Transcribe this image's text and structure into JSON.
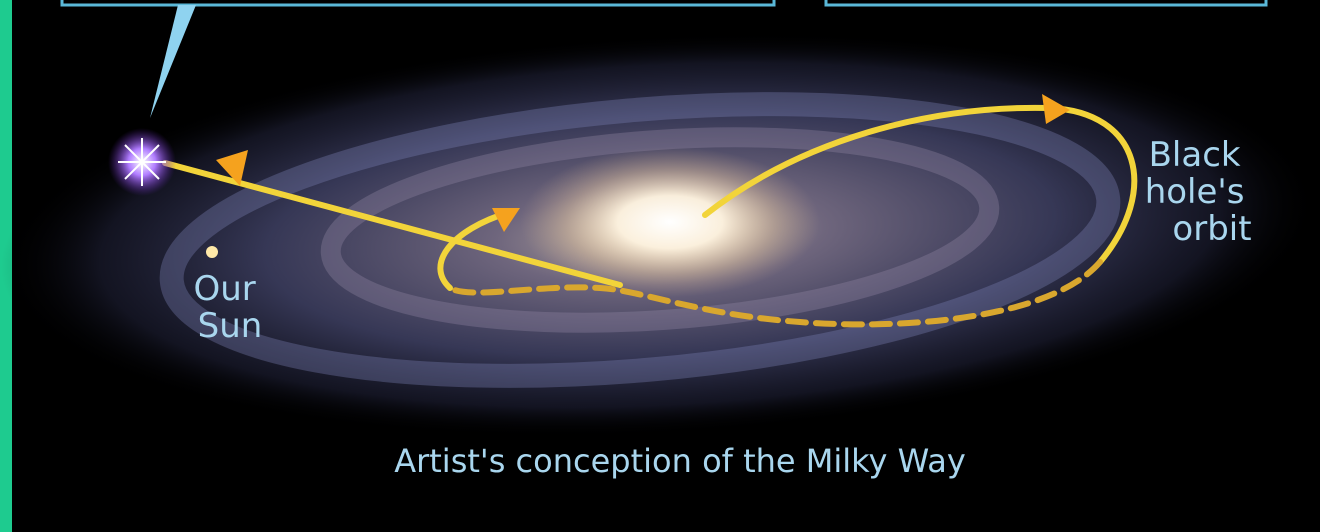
{
  "labels": {
    "black_hole_orbit": [
      "Black",
      "hole's",
      "orbit"
    ],
    "our_sun": [
      "Our",
      "Sun"
    ]
  },
  "caption": "Artist's conception of the Milky Way"
}
